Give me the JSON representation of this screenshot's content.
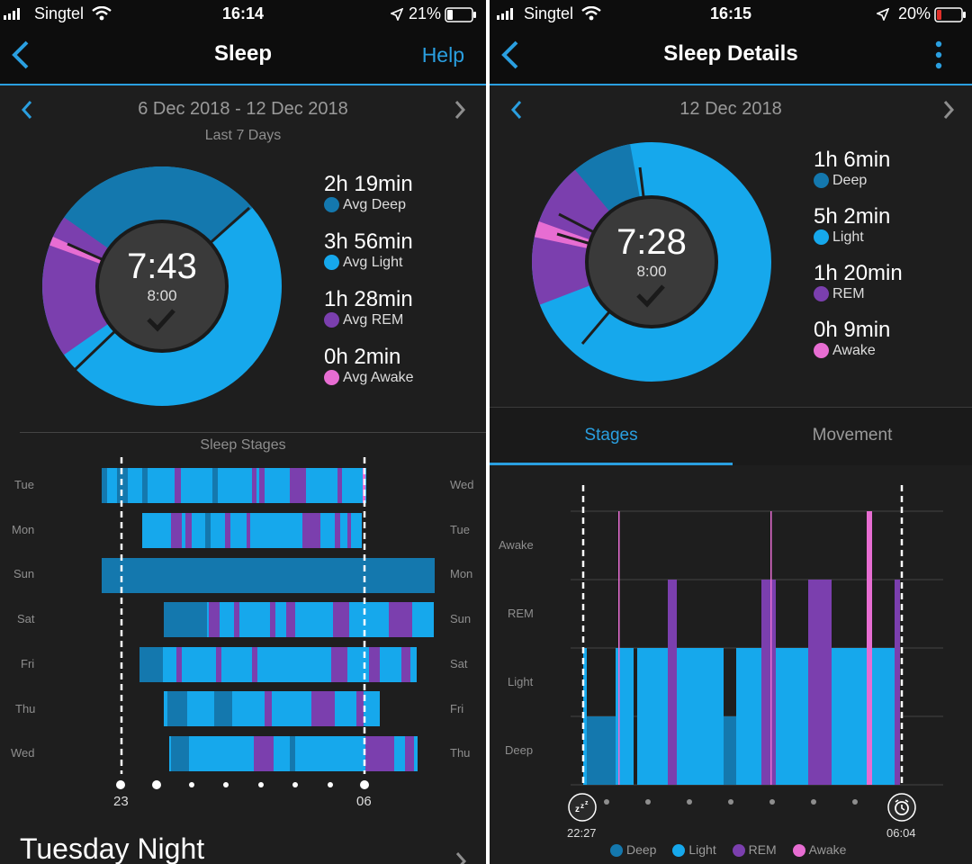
{
  "left": {
    "status": {
      "carrier": "Singtel",
      "time": "16:14",
      "battery": "21%"
    },
    "nav": {
      "title": "Sleep",
      "help": "Help"
    },
    "date_range": "6 Dec 2018 - 12 Dec 2018",
    "period": "Last 7 Days",
    "donut": {
      "time": "7:43",
      "goal": "8:00"
    },
    "stats": [
      {
        "value": "2h 19min",
        "label": "Avg Deep",
        "color": "#1478ae"
      },
      {
        "value": "3h 56min",
        "label": "Avg Light",
        "color": "#16a8ec"
      },
      {
        "value": "1h 28min",
        "label": "Avg REM",
        "color": "#7b3fae"
      },
      {
        "value": "0h 2min",
        "label": "Avg Awake",
        "color": "#e76dd2"
      }
    ],
    "stages_title": "Sleep Stages",
    "days_left": [
      "Tue",
      "Mon",
      "Sun",
      "Sat",
      "Fri",
      "Thu",
      "Wed"
    ],
    "days_right": [
      "Wed",
      "Tue",
      "Mon",
      "Sun",
      "Sat",
      "Fri",
      "Thu"
    ],
    "axis_start": "23",
    "axis_end": "06",
    "night_title": "Tuesday Night"
  },
  "right": {
    "status": {
      "carrier": "Singtel",
      "time": "16:15",
      "battery": "20%"
    },
    "nav": {
      "title": "Sleep Details"
    },
    "date": "12 Dec 2018",
    "donut": {
      "time": "7:28",
      "goal": "8:00"
    },
    "stats": [
      {
        "value": "1h 6min",
        "label": "Deep",
        "color": "#1478ae"
      },
      {
        "value": "5h 2min",
        "label": "Light",
        "color": "#16a8ec"
      },
      {
        "value": "1h 20min",
        "label": "REM",
        "color": "#7b3fae"
      },
      {
        "value": "0h 9min",
        "label": "Awake",
        "color": "#e76dd2"
      }
    ],
    "tabs": [
      "Stages",
      "Movement"
    ],
    "levels": [
      "Awake",
      "REM",
      "Light",
      "Deep"
    ],
    "start_time": "22:27",
    "end_time": "06:04",
    "legend": [
      "Deep",
      "Light",
      "REM",
      "Awake"
    ]
  }
}
